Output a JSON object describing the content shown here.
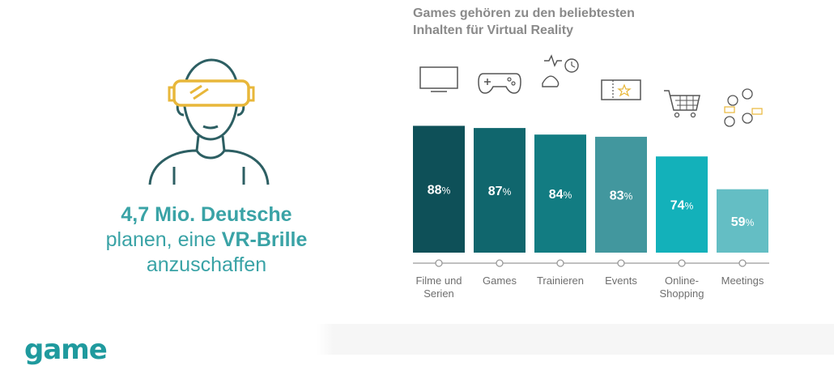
{
  "claim": {
    "line1": "4,7 Mio. Deutsche",
    "line2_pre": "planen, eine ",
    "line2_bold": "VR-Brille",
    "line3": "anzuschaffen"
  },
  "logo": {
    "text": "game"
  },
  "colors": {
    "teal_text": "#3aa3a6",
    "axis": "#9a9a9a",
    "label": "#6f6f6f",
    "icon": "#555555",
    "icon_accent": "#e8b73a",
    "person_line": "#2d5f63"
  },
  "chart_data": {
    "type": "bar",
    "title_lines": [
      "Games gehören zu den beliebtesten",
      "Inhalten für Virtual Reality"
    ],
    "categories": [
      "Filme und Serien",
      "Games",
      "Trainieren",
      "Events",
      "Online-Shopping",
      "Meetings"
    ],
    "category_lines": [
      [
        "Filme und",
        "Serien"
      ],
      [
        "Games"
      ],
      [
        "Trainieren"
      ],
      [
        "Events"
      ],
      [
        "Online-",
        "Shopping"
      ],
      [
        "Meetings"
      ]
    ],
    "values": [
      88,
      87,
      84,
      83,
      74,
      59
    ],
    "value_unit": "%",
    "bar_colors": [
      "#0e5058",
      "#10666d",
      "#127c82",
      "#42979e",
      "#13b1ba",
      "#64bec4"
    ],
    "icons": [
      "tv-icon",
      "gamepad-icon",
      "fitness-icon",
      "ticket-icon",
      "shopping-cart-icon",
      "meeting-people-icon"
    ],
    "ylim": [
      0,
      100
    ],
    "grid": false,
    "legend": "none"
  }
}
